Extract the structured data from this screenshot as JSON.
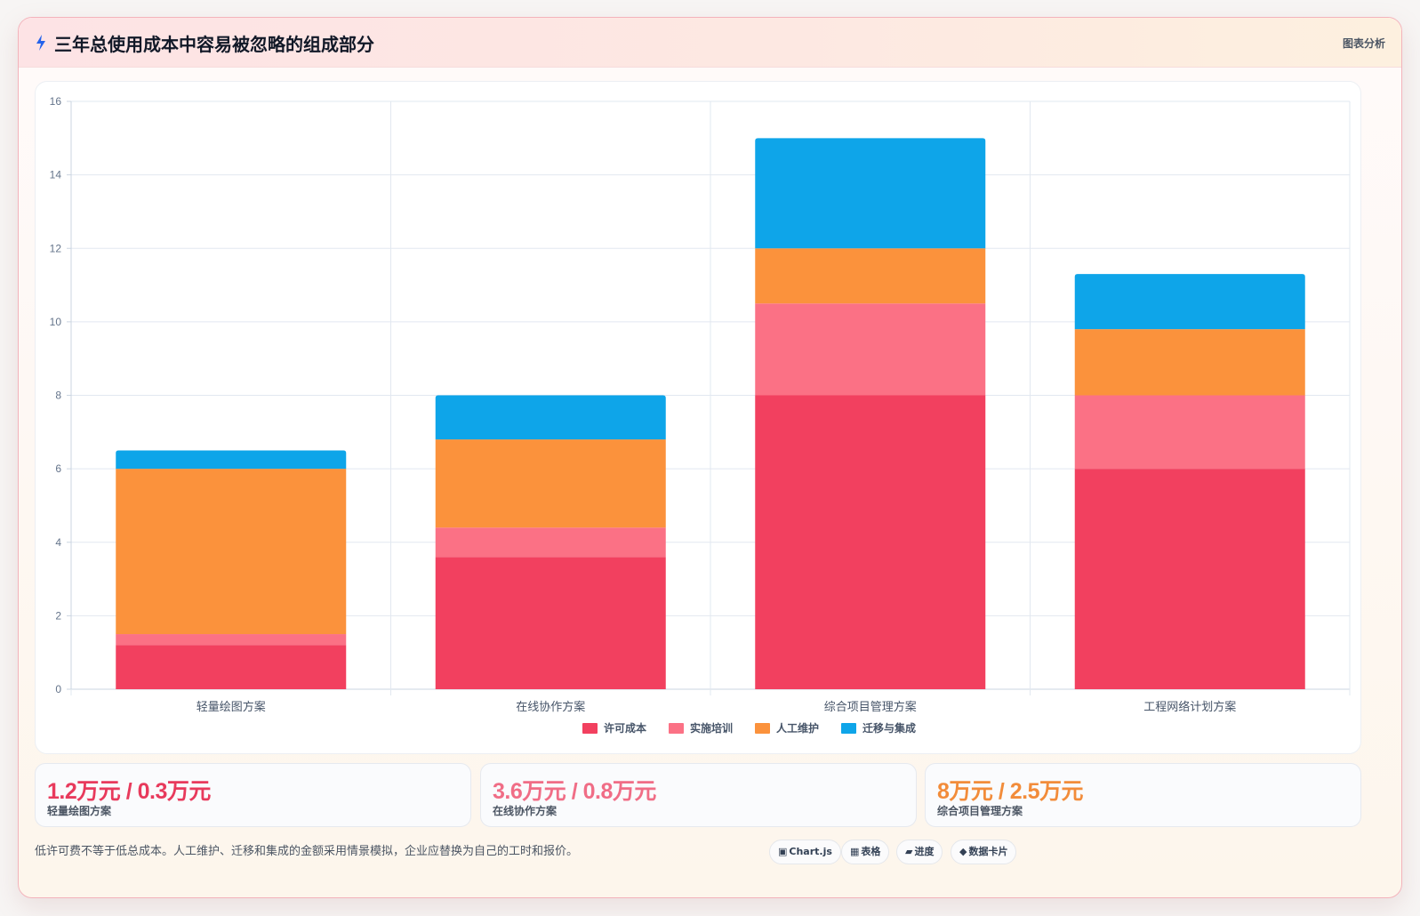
{
  "header": {
    "title": "三年总使用成本中容易被忽略的组成部分",
    "tag": "图表分析"
  },
  "chart_data": {
    "type": "bar",
    "stacked": true,
    "categories": [
      "轻量绘图方案",
      "在线协作方案",
      "综合项目管理方案",
      "工程网络计划方案"
    ],
    "series": [
      {
        "name": "许可成本",
        "color": "#f2405f",
        "values": [
          1.2,
          3.6,
          8,
          6
        ]
      },
      {
        "name": "实施培训",
        "color": "#fb7185",
        "values": [
          0.3,
          0.8,
          2.5,
          2
        ]
      },
      {
        "name": "人工维护",
        "color": "#fb923c",
        "values": [
          4.5,
          2.4,
          1.5,
          1.8
        ]
      },
      {
        "name": "迁移与集成",
        "color": "#0ea5e9",
        "values": [
          0.5,
          1.2,
          3,
          1.5
        ]
      }
    ],
    "ylim": [
      0,
      16
    ],
    "yticks": [
      "0",
      "2",
      "4",
      "6",
      "8",
      "10",
      "12",
      "14",
      "16"
    ],
    "grid": true,
    "legend": "bottom",
    "title": "",
    "xlabel": "",
    "ylabel": ""
  },
  "stats": [
    {
      "value": "1.2万元 / 0.3万元",
      "label": "轻量绘图方案",
      "color": "#e83a5c"
    },
    {
      "value": "3.6万元 / 0.8万元",
      "label": "在线协作方案",
      "color": "#f06d86"
    },
    {
      "value": "8万元 / 2.5万元",
      "label": "综合项目管理方案",
      "color": "#f28c3a"
    }
  ],
  "footnote": "低许可费不等于低总成本。人工维护、迁移和集成的金额采用情景模拟，企业应替换为自己的工时和报价。",
  "toolbar": [
    {
      "icon": "▣",
      "label": "Chart.js",
      "icon_name": "chart-icon"
    },
    {
      "icon": "▦",
      "label": "表格",
      "icon_name": "table-icon"
    },
    {
      "icon": "▰",
      "label": "进度",
      "icon_name": "progress-icon"
    },
    {
      "icon": "◆",
      "label": "数据卡片",
      "icon_name": "diamond-icon"
    }
  ]
}
